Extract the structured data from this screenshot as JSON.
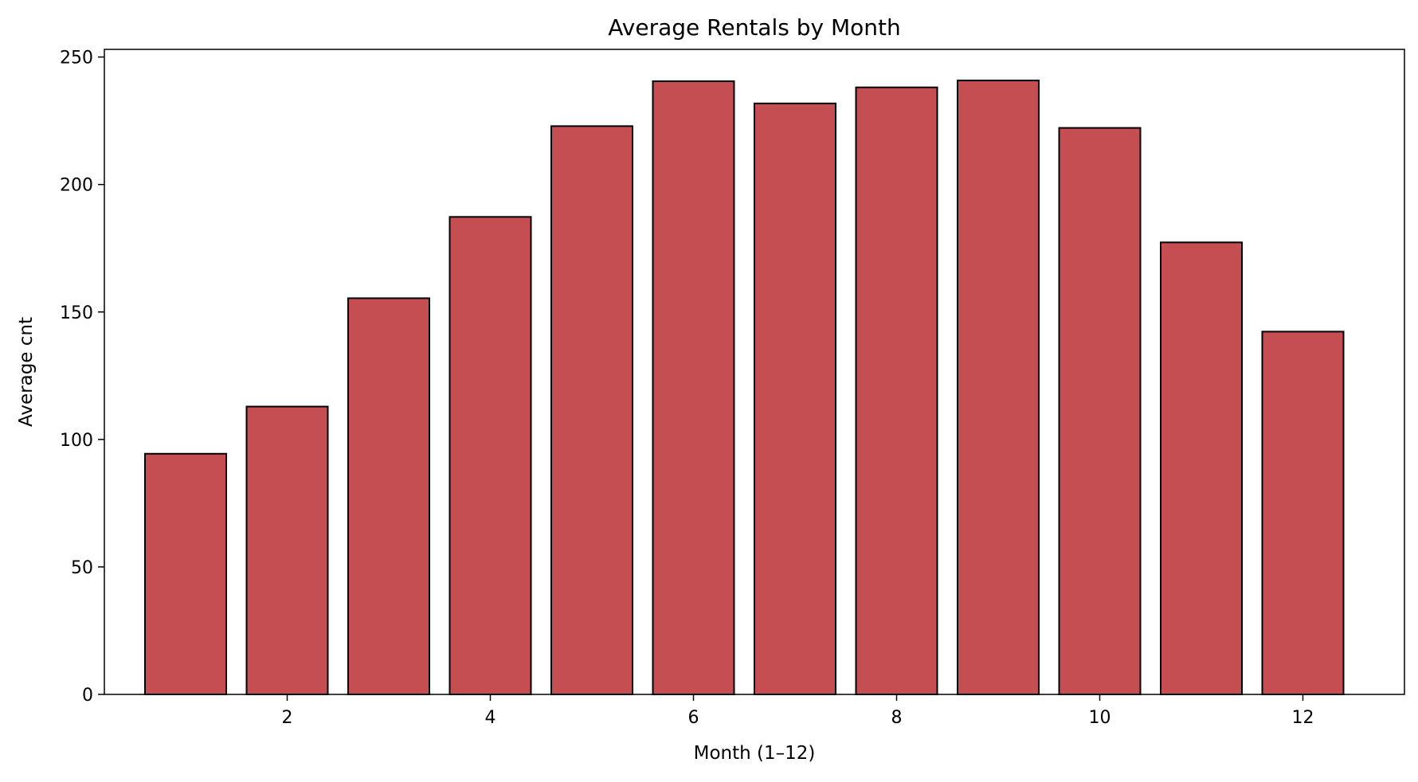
{
  "chart_data": {
    "type": "bar",
    "title": "Average Rentals by Month",
    "xlabel": "Month (1–12)",
    "ylabel": "Average cnt",
    "categories": [
      1,
      2,
      3,
      4,
      5,
      6,
      7,
      8,
      9,
      10,
      11,
      12
    ],
    "values": [
      94.4,
      112.9,
      155.4,
      187.3,
      222.9,
      240.5,
      231.8,
      238.1,
      240.8,
      222.2,
      177.3,
      142.3
    ],
    "xlim": [
      0.2,
      13.0
    ],
    "ylim": [
      0,
      253
    ],
    "xticks": [
      2,
      4,
      6,
      8,
      10,
      12
    ],
    "yticks": [
      0,
      50,
      100,
      150,
      200,
      250
    ],
    "grid": false,
    "legend": "none",
    "colors": {
      "bar_fill": "#c44e52",
      "bar_edge": "#000000",
      "axis": "#000000"
    }
  }
}
